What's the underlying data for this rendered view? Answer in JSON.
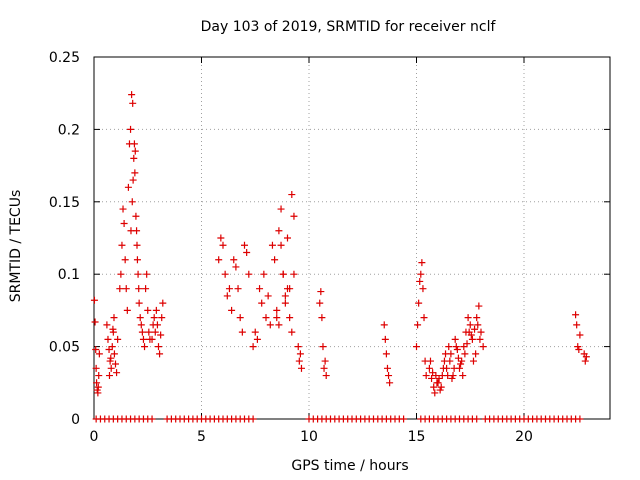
{
  "chart_data": {
    "type": "scatter",
    "title": "Day 103 of 2019, SRMTID for receiver nclf",
    "xlabel": "GPS time / hours",
    "ylabel": "SRMTID / TECUs",
    "xlim": [
      0,
      24
    ],
    "ylim": [
      0,
      0.25
    ],
    "x_ticks": [
      0,
      5,
      10,
      15,
      20
    ],
    "x_tick_labels": [
      "0",
      "5",
      "10",
      "15",
      "20"
    ],
    "y_ticks": [
      0,
      0.05,
      0.1,
      0.15,
      0.2,
      0.25
    ],
    "y_tick_labels": [
      "0",
      "0.05",
      "0.1",
      "0.15",
      "0.2",
      "0.25"
    ],
    "grid": true,
    "marker": "plus",
    "color": "#dd0000",
    "series": [
      {
        "x": [
          0.02,
          0.05,
          0.08,
          0.1,
          0.12,
          0.15,
          0.18,
          0.2,
          0.22,
          0.25,
          0.6,
          0.65,
          0.7,
          0.75,
          0.8,
          0.85,
          0.9,
          0.95,
          1.0,
          1.05,
          1.1,
          0.72,
          0.78,
          0.88,
          0.93,
          1.2,
          1.25,
          1.3,
          1.35,
          1.4,
          1.45,
          1.5,
          1.55,
          1.6,
          1.65,
          1.7,
          1.75,
          1.8,
          1.85,
          1.9,
          1.95,
          2.0,
          2.05,
          2.1,
          2.15,
          2.2,
          2.25,
          2.3,
          2.35,
          2.4,
          2.45,
          2.5,
          2.55,
          2.6,
          1.72,
          1.78,
          1.82,
          1.88,
          1.92,
          1.98,
          2.02,
          2.08,
          2.7,
          2.75,
          2.8,
          2.85,
          2.9,
          2.95,
          3.0,
          3.05,
          3.1,
          3.15,
          3.2,
          5.8,
          5.9,
          6.0,
          6.1,
          6.2,
          6.3,
          6.4,
          6.5,
          6.6,
          6.7,
          6.8,
          6.9,
          7.0,
          7.1,
          7.2,
          7.4,
          7.5,
          7.6,
          7.7,
          7.8,
          7.9,
          8.0,
          8.1,
          8.2,
          8.3,
          8.4,
          8.5,
          8.6,
          8.7,
          8.8,
          8.9,
          9.0,
          9.1,
          9.2,
          9.3,
          8.5,
          8.6,
          8.7,
          8.8,
          8.9,
          9.0,
          9.1,
          9.2,
          9.3,
          9.5,
          9.55,
          9.6,
          9.65,
          10.5,
          10.55,
          10.6,
          10.65,
          10.7,
          10.75,
          10.8,
          13.5,
          13.55,
          13.6,
          13.65,
          13.7,
          13.75,
          15.0,
          15.05,
          15.1,
          15.15,
          15.2,
          15.25,
          15.3,
          15.35,
          15.4,
          15.45,
          15.6,
          15.7,
          15.8,
          15.9,
          16.0,
          16.1,
          16.2,
          16.3,
          16.4,
          16.5,
          16.6,
          16.7,
          16.8,
          16.9,
          17.0,
          17.1,
          17.2,
          17.3,
          17.4,
          17.5,
          17.6,
          17.7,
          17.8,
          17.9,
          18.0,
          18.1,
          15.65,
          15.75,
          15.85,
          15.95,
          16.05,
          16.15,
          16.25,
          16.35,
          16.45,
          16.55,
          16.65,
          16.75,
          16.85,
          16.95,
          17.05,
          17.15,
          17.25,
          17.35,
          17.45,
          17.55,
          17.65,
          17.75,
          17.85,
          17.95,
          22.4,
          22.45,
          22.5,
          22.55,
          22.6,
          22.8,
          22.85,
          22.9
        ],
        "y": [
          0.082,
          0.067,
          0.048,
          0.035,
          0.025,
          0.02,
          0.018,
          0.022,
          0.03,
          0.045,
          0.065,
          0.055,
          0.048,
          0.04,
          0.035,
          0.05,
          0.06,
          0.045,
          0.038,
          0.032,
          0.055,
          0.03,
          0.042,
          0.062,
          0.07,
          0.09,
          0.1,
          0.12,
          0.145,
          0.135,
          0.11,
          0.09,
          0.075,
          0.16,
          0.19,
          0.2,
          0.224,
          0.218,
          0.18,
          0.17,
          0.14,
          0.12,
          0.1,
          0.08,
          0.07,
          0.065,
          0.06,
          0.055,
          0.05,
          0.09,
          0.1,
          0.075,
          0.06,
          0.055,
          0.13,
          0.15,
          0.165,
          0.19,
          0.185,
          0.13,
          0.11,
          0.09,
          0.055,
          0.065,
          0.07,
          0.06,
          0.075,
          0.065,
          0.05,
          0.045,
          0.058,
          0.07,
          0.08,
          0.11,
          0.125,
          0.12,
          0.1,
          0.085,
          0.09,
          0.075,
          0.11,
          0.105,
          0.09,
          0.07,
          0.06,
          0.12,
          0.115,
          0.1,
          0.05,
          0.06,
          0.055,
          0.09,
          0.08,
          0.1,
          0.07,
          0.085,
          0.065,
          0.12,
          0.11,
          0.075,
          0.13,
          0.145,
          0.1,
          0.085,
          0.09,
          0.07,
          0.155,
          0.14,
          0.07,
          0.065,
          0.12,
          0.1,
          0.08,
          0.125,
          0.09,
          0.06,
          0.1,
          0.05,
          0.04,
          0.045,
          0.035,
          0.08,
          0.088,
          0.07,
          0.05,
          0.035,
          0.04,
          0.03,
          0.065,
          0.055,
          0.045,
          0.035,
          0.03,
          0.025,
          0.05,
          0.065,
          0.08,
          0.095,
          0.1,
          0.108,
          0.09,
          0.07,
          0.04,
          0.03,
          0.035,
          0.028,
          0.022,
          0.03,
          0.025,
          0.02,
          0.03,
          0.04,
          0.035,
          0.05,
          0.045,
          0.03,
          0.055,
          0.048,
          0.035,
          0.04,
          0.05,
          0.06,
          0.07,
          0.065,
          0.055,
          0.062,
          0.07,
          0.078,
          0.06,
          0.05,
          0.04,
          0.032,
          0.018,
          0.025,
          0.028,
          0.022,
          0.035,
          0.045,
          0.03,
          0.04,
          0.028,
          0.035,
          0.05,
          0.042,
          0.038,
          0.03,
          0.045,
          0.052,
          0.06,
          0.058,
          0.04,
          0.045,
          0.065,
          0.055,
          0.072,
          0.065,
          0.05,
          0.048,
          0.058,
          0.045,
          0.04,
          0.043
        ]
      },
      {
        "x": [
          0.1,
          0.3,
          0.5,
          0.7,
          0.9,
          1.1,
          1.3,
          1.5,
          1.7,
          1.9,
          2.1,
          2.3,
          2.5,
          2.7,
          3.4,
          3.6,
          3.8,
          4.0,
          4.2,
          4.4,
          4.6,
          4.8,
          5.0,
          5.2,
          5.4,
          5.6,
          5.8,
          6.0,
          6.2,
          6.4,
          6.6,
          6.8,
          7.0,
          7.2,
          7.4,
          10.0,
          10.2,
          10.4,
          10.6,
          10.8,
          11.0,
          11.2,
          11.4,
          11.6,
          11.8,
          12.0,
          12.2,
          12.4,
          12.6,
          12.8,
          13.0,
          13.2,
          13.4,
          13.6,
          13.8,
          14.0,
          14.2,
          14.4,
          15.2,
          15.4,
          15.6,
          15.8,
          16.0,
          16.2,
          16.4,
          16.6,
          16.8,
          17.0,
          17.2,
          17.4,
          17.6,
          17.8,
          18.2,
          18.4,
          18.6,
          18.8,
          19.0,
          19.2,
          19.4,
          19.6,
          19.8,
          20.0,
          20.2,
          20.4,
          20.6,
          20.8,
          21.0,
          21.2,
          21.4,
          21.6,
          21.8,
          22.0,
          22.2,
          22.4,
          22.6
        ],
        "y": [
          0,
          0,
          0,
          0,
          0,
          0,
          0,
          0,
          0,
          0,
          0,
          0,
          0,
          0,
          0,
          0,
          0,
          0,
          0,
          0,
          0,
          0,
          0,
          0,
          0,
          0,
          0,
          0,
          0,
          0,
          0,
          0,
          0,
          0,
          0,
          0,
          0,
          0,
          0,
          0,
          0,
          0,
          0,
          0,
          0,
          0,
          0,
          0,
          0,
          0,
          0,
          0,
          0,
          0,
          0,
          0,
          0,
          0,
          0,
          0,
          0,
          0,
          0,
          0,
          0,
          0,
          0,
          0,
          0,
          0,
          0,
          0,
          0,
          0,
          0,
          0,
          0,
          0,
          0,
          0,
          0,
          0,
          0,
          0,
          0,
          0,
          0,
          0,
          0,
          0,
          0,
          0,
          0,
          0,
          0
        ]
      }
    ]
  }
}
